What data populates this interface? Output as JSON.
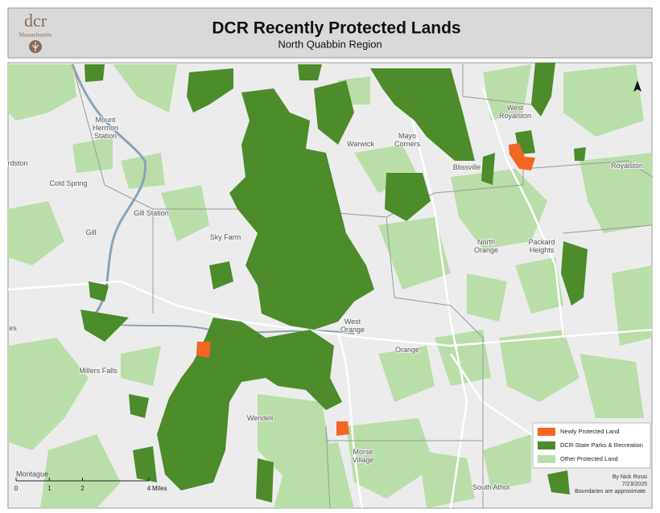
{
  "header": {
    "logo": "dcr",
    "logo_sub": "Massachusetts",
    "title": "DCR Recently Protected Lands",
    "subtitle": "North Quabbin Region"
  },
  "places": [
    [
      "Mount",
      "Hermon",
      "Station"
    ],
    [
      "Cold Spring"
    ],
    [
      "Gill Station"
    ],
    [
      "Gill"
    ],
    [
      "Sky Farm"
    ],
    [
      "Millers Falls"
    ],
    [
      "Wendell"
    ],
    [
      "Montague"
    ],
    [
      "Warwick"
    ],
    [
      "Mayo",
      "Corners"
    ],
    [
      "West",
      "Royalston"
    ],
    [
      "Blissville"
    ],
    [
      "Royalston"
    ],
    [
      "North",
      "Orange"
    ],
    [
      "Packard",
      "Heights"
    ],
    [
      "West",
      "Orange"
    ],
    [
      "Orange"
    ],
    [
      "Morse",
      "Village"
    ],
    [
      "South Athol"
    ],
    [
      "rdston"
    ],
    [
      "es"
    ]
  ],
  "legend": [
    "Newly Protected Land",
    "DCR-State Parks & Recreation",
    "Other Protected Land"
  ],
  "scale": {
    "ticks": [
      0,
      1,
      2,
      4
    ],
    "unit": "Miles"
  },
  "credit": [
    "By Nick Rossi",
    "7/23/2025",
    "Boundaries are approximate."
  ]
}
